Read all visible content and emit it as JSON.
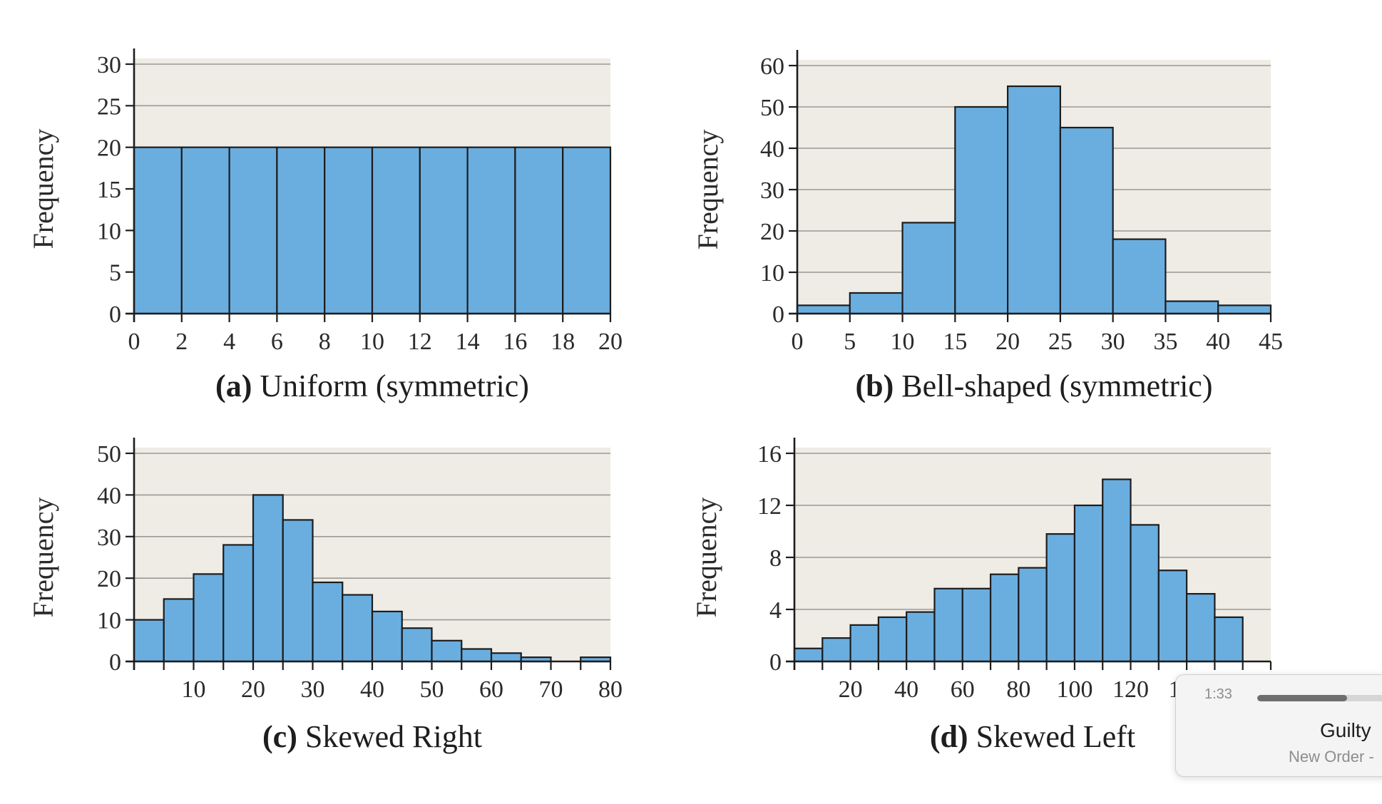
{
  "chart_data": [
    {
      "type": "bar",
      "label": "(a)",
      "caption": "Uniform (symmetric)",
      "ylabel": "Frequency",
      "bin_edges": [
        0,
        2,
        4,
        6,
        8,
        10,
        12,
        14,
        16,
        18,
        20
      ],
      "values": [
        20,
        20,
        20,
        20,
        20,
        20,
        20,
        20,
        20,
        20
      ],
      "xlim": [
        0,
        20
      ],
      "ylim": [
        0,
        30
      ],
      "xticks": [
        0,
        2,
        4,
        6,
        8,
        10,
        12,
        14,
        16,
        18,
        20
      ],
      "yticks": [
        0,
        5,
        10,
        15,
        20,
        25,
        30
      ],
      "grid": true,
      "bar_color": "#6aaee0",
      "plot_bg": "#efebe5"
    },
    {
      "type": "bar",
      "label": "(b)",
      "caption": "Bell-shaped (symmetric)",
      "ylabel": "Frequency",
      "bin_edges": [
        0,
        5,
        10,
        15,
        20,
        25,
        30,
        35,
        40,
        45
      ],
      "values": [
        2,
        5,
        22,
        50,
        55,
        45,
        18,
        3,
        2
      ],
      "xlim": [
        0,
        45
      ],
      "ylim": [
        0,
        60
      ],
      "xticks": [
        0,
        5,
        10,
        15,
        20,
        25,
        30,
        35,
        40,
        45
      ],
      "yticks": [
        0,
        10,
        20,
        30,
        40,
        50,
        60
      ],
      "grid": true,
      "bar_color": "#6aaee0",
      "plot_bg": "#efebe5"
    },
    {
      "type": "bar",
      "label": "(c)",
      "caption": "Skewed Right",
      "ylabel": "Frequency",
      "bin_edges": [
        0,
        5,
        10,
        15,
        20,
        25,
        30,
        35,
        40,
        45,
        50,
        55,
        60,
        65,
        70,
        75,
        80
      ],
      "values": [
        10,
        15,
        21,
        28,
        40,
        34,
        19,
        16,
        12,
        8,
        5,
        3,
        2,
        1,
        0,
        1
      ],
      "xlim": [
        0,
        80
      ],
      "ylim": [
        0,
        50
      ],
      "xticks": [
        10,
        20,
        30,
        40,
        50,
        60,
        70,
        80
      ],
      "yticks": [
        0,
        10,
        20,
        30,
        40,
        50
      ],
      "grid": true,
      "bar_color": "#6aaee0",
      "plot_bg": "#efebe5"
    },
    {
      "type": "bar",
      "label": "(d)",
      "caption": "Skewed Left",
      "ylabel": "Frequency",
      "bin_edges": [
        0,
        10,
        20,
        30,
        40,
        50,
        60,
        70,
        80,
        90,
        100,
        110,
        120,
        130,
        140,
        150,
        160,
        170
      ],
      "values": [
        1,
        1.8,
        2.8,
        3.4,
        3.8,
        5.6,
        5.6,
        6.7,
        7.2,
        9.8,
        12,
        14,
        10.5,
        7,
        5.2,
        3.4,
        0
      ],
      "xlim": [
        0,
        170
      ],
      "ylim": [
        0,
        16
      ],
      "xticks": [
        20,
        40,
        60,
        80,
        100,
        120,
        140
      ],
      "yticks": [
        0,
        4,
        8,
        12,
        16
      ],
      "grid": true,
      "bar_color": "#6aaee0",
      "plot_bg": "#efebe5"
    }
  ],
  "player": {
    "time": "1:33",
    "progress": 0.6,
    "song": "Guilty",
    "artist": "New Order -"
  }
}
